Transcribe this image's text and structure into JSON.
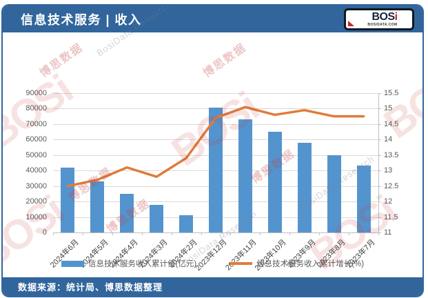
{
  "header": {
    "title": "信息技术服务 | 收入",
    "logo": {
      "brand": "BOS",
      "brand_accent": "i",
      "domain": "BOSIDATA.COM"
    }
  },
  "footer": {
    "source_text": "数据来源：统计局、博思数据整理"
  },
  "watermarks": {
    "brand": "BOSi",
    "cn": "博思数据",
    "en": "BosiData Research"
  },
  "colors": {
    "header_bg": "#31659C",
    "bar": "#5494CE",
    "line": "#E07B39",
    "grid": "#D9D9D9",
    "axis": "#BFBFBF",
    "axis_text": "#595959"
  },
  "chart_data": {
    "type": "bar",
    "subtype": "bar+line-dual-axis",
    "categories": [
      "2024年6月",
      "2024年5月",
      "2024年4月",
      "2024年3月",
      "2024年2月",
      "2023年12月",
      "2023年11月",
      "2023年10月",
      "2023年9月",
      "2023年8月",
      "2023年7月"
    ],
    "series": [
      {
        "name": "信息技术服务收入累计值(亿元)",
        "type": "bar",
        "axis": "left",
        "values": [
          42000,
          33000,
          25000,
          18000,
          11000,
          80500,
          73000,
          65000,
          58000,
          50000,
          43000
        ]
      },
      {
        "name": "信息技术服务收入累计增长(%)",
        "type": "line",
        "axis": "right",
        "values": [
          12.5,
          12.7,
          13.1,
          12.8,
          13.4,
          14.7,
          15.05,
          14.8,
          14.95,
          14.75,
          14.75
        ]
      }
    ],
    "left_axis": {
      "min": 0,
      "max": 90000,
      "step": 10000
    },
    "right_axis": {
      "min": 11,
      "max": 15.5,
      "step": 0.5
    },
    "grid": true,
    "legend_position": "bottom"
  }
}
